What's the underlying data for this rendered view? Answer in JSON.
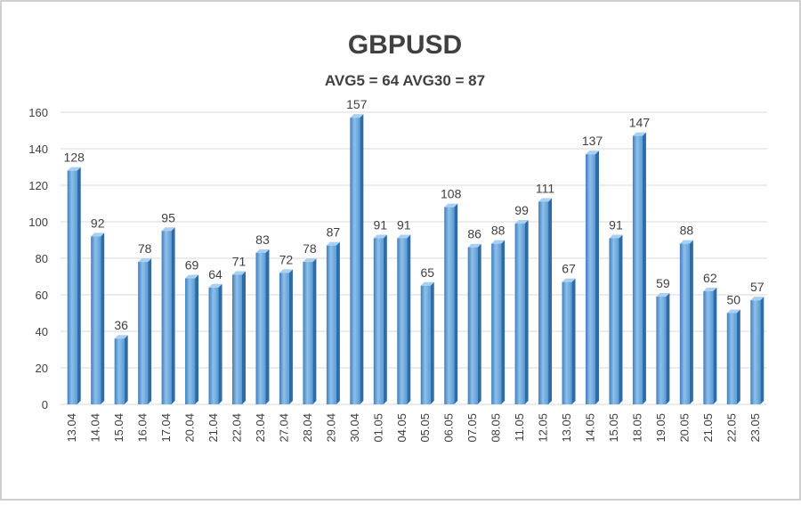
{
  "chart_data": {
    "type": "bar",
    "title": "GBPUSD",
    "subtitle": "AVG5 = 64 AVG30 = 87",
    "xlabel": "",
    "ylabel": "",
    "ylim": [
      0,
      160
    ],
    "yticks": [
      0,
      20,
      40,
      60,
      80,
      100,
      120,
      140,
      160
    ],
    "grid": true,
    "legend": "none",
    "categories": [
      "13.04",
      "14.04",
      "15.04",
      "16.04",
      "17.04",
      "20.04",
      "21.04",
      "22.04",
      "23.04",
      "27.04",
      "28.04",
      "29.04",
      "30.04",
      "01.05",
      "04.05",
      "05.05",
      "06.05",
      "07.05",
      "08.05",
      "11.05",
      "12.05",
      "13.05",
      "14.05",
      "15.05",
      "18.05",
      "19.05",
      "20.05",
      "21.05",
      "22.05",
      "23.05"
    ],
    "values": [
      128,
      92,
      36,
      78,
      95,
      69,
      64,
      71,
      83,
      72,
      78,
      87,
      157,
      91,
      91,
      65,
      108,
      86,
      88,
      99,
      111,
      67,
      137,
      91,
      147,
      59,
      88,
      62,
      50,
      57
    ],
    "colors": {
      "bar_front": "#5b9bd5",
      "bar_front_light": "#8ec0ea",
      "bar_front_dark": "#3f7fbe",
      "bar_side": "#2e6ca8",
      "bar_top": "#a9d0f2",
      "grid": "#d9d9d9",
      "axis_text": "#404040",
      "title": "#404040",
      "border": "#bfbfbf"
    }
  }
}
